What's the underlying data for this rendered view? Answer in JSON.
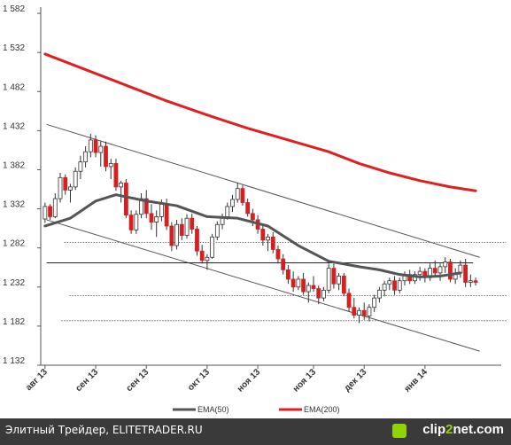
{
  "chart_data": {
    "type": "candlestick",
    "yticks": [
      1132,
      1182,
      1232,
      1282,
      1332,
      1382,
      1432,
      1482,
      1532,
      1582
    ],
    "ylim": [
      1132,
      1590
    ],
    "xticks": [
      {
        "label": "авг 13",
        "i": 0
      },
      {
        "label": "сен 13",
        "i": 10
      },
      {
        "label": "сен 13",
        "i": 20
      },
      {
        "label": "окт 13",
        "i": 32
      },
      {
        "label": "ноя 13",
        "i": 42
      },
      {
        "label": "ноя 13",
        "i": 53
      },
      {
        "label": "дек 13",
        "i": 63
      },
      {
        "label": "янв 14",
        "i": 75
      }
    ],
    "n_candles": 86,
    "candles": [
      [
        1319,
        1340,
        1314,
        1335
      ],
      [
        1335,
        1338,
        1318,
        1322
      ],
      [
        1322,
        1352,
        1320,
        1345
      ],
      [
        1345,
        1378,
        1340,
        1372
      ],
      [
        1372,
        1376,
        1350,
        1356
      ],
      [
        1356,
        1364,
        1340,
        1360
      ],
      [
        1360,
        1385,
        1356,
        1380
      ],
      [
        1380,
        1400,
        1370,
        1392
      ],
      [
        1392,
        1412,
        1385,
        1405
      ],
      [
        1405,
        1428,
        1398,
        1420
      ],
      [
        1420,
        1426,
        1398,
        1404
      ],
      [
        1404,
        1418,
        1386,
        1412
      ],
      [
        1412,
        1418,
        1380,
        1386
      ],
      [
        1386,
        1396,
        1370,
        1390
      ],
      [
        1390,
        1396,
        1355,
        1360
      ],
      [
        1360,
        1368,
        1340,
        1365
      ],
      [
        1365,
        1370,
        1320,
        1324
      ],
      [
        1324,
        1330,
        1300,
        1305
      ],
      [
        1305,
        1330,
        1300,
        1325
      ],
      [
        1325,
        1352,
        1320,
        1345
      ],
      [
        1345,
        1356,
        1320,
        1326
      ],
      [
        1326,
        1338,
        1305,
        1315
      ],
      [
        1315,
        1330,
        1296,
        1322
      ],
      [
        1322,
        1344,
        1316,
        1338
      ],
      [
        1338,
        1345,
        1305,
        1310
      ],
      [
        1310,
        1315,
        1278,
        1285
      ],
      [
        1285,
        1318,
        1280,
        1312
      ],
      [
        1312,
        1320,
        1292,
        1298
      ],
      [
        1298,
        1325,
        1294,
        1320
      ],
      [
        1320,
        1326,
        1300,
        1306
      ],
      [
        1306,
        1310,
        1272,
        1278
      ],
      [
        1278,
        1286,
        1262,
        1266
      ],
      [
        1266,
        1274,
        1254,
        1270
      ],
      [
        1270,
        1300,
        1268,
        1296
      ],
      [
        1296,
        1316,
        1292,
        1312
      ],
      [
        1312,
        1326,
        1306,
        1322
      ],
      [
        1322,
        1340,
        1318,
        1335
      ],
      [
        1335,
        1350,
        1328,
        1344
      ],
      [
        1344,
        1365,
        1340,
        1358
      ],
      [
        1358,
        1362,
        1336,
        1340
      ],
      [
        1340,
        1345,
        1322,
        1326
      ],
      [
        1326,
        1332,
        1310,
        1318
      ],
      [
        1318,
        1324,
        1300,
        1306
      ],
      [
        1306,
        1310,
        1285,
        1292
      ],
      [
        1292,
        1300,
        1278,
        1296
      ],
      [
        1296,
        1302,
        1275,
        1280
      ],
      [
        1280,
        1285,
        1262,
        1268
      ],
      [
        1268,
        1274,
        1248,
        1254
      ],
      [
        1254,
        1260,
        1236,
        1242
      ],
      [
        1242,
        1252,
        1226,
        1232
      ],
      [
        1232,
        1246,
        1228,
        1242
      ],
      [
        1242,
        1250,
        1222,
        1226
      ],
      [
        1226,
        1238,
        1212,
        1234
      ],
      [
        1234,
        1246,
        1226,
        1230
      ],
      [
        1230,
        1234,
        1210,
        1218
      ],
      [
        1218,
        1232,
        1214,
        1228
      ],
      [
        1228,
        1262,
        1224,
        1256
      ],
      [
        1256,
        1262,
        1230,
        1236
      ],
      [
        1236,
        1250,
        1228,
        1246
      ],
      [
        1246,
        1250,
        1220,
        1224
      ],
      [
        1224,
        1230,
        1200,
        1206
      ],
      [
        1206,
        1218,
        1192,
        1196
      ],
      [
        1196,
        1206,
        1186,
        1202
      ],
      [
        1202,
        1212,
        1190,
        1195
      ],
      [
        1195,
        1210,
        1188,
        1206
      ],
      [
        1206,
        1222,
        1200,
        1218
      ],
      [
        1218,
        1232,
        1212,
        1228
      ],
      [
        1228,
        1240,
        1220,
        1236
      ],
      [
        1236,
        1244,
        1228,
        1240
      ],
      [
        1240,
        1246,
        1222,
        1228
      ],
      [
        1228,
        1244,
        1224,
        1240
      ],
      [
        1240,
        1252,
        1234,
        1248
      ],
      [
        1248,
        1254,
        1236,
        1240
      ],
      [
        1240,
        1252,
        1236,
        1248
      ],
      [
        1248,
        1258,
        1240,
        1252
      ],
      [
        1252,
        1256,
        1238,
        1244
      ],
      [
        1244,
        1262,
        1240,
        1256
      ],
      [
        1256,
        1266,
        1246,
        1250
      ],
      [
        1250,
        1262,
        1240,
        1258
      ],
      [
        1258,
        1270,
        1250,
        1264
      ],
      [
        1264,
        1268,
        1238,
        1242
      ],
      [
        1242,
        1256,
        1236,
        1250
      ],
      [
        1250,
        1266,
        1244,
        1260
      ],
      [
        1260,
        1268,
        1232,
        1238
      ],
      [
        1238,
        1248,
        1232,
        1240
      ],
      [
        1240,
        1244,
        1234,
        1238
      ]
    ],
    "series": [
      {
        "name": "EMA(50)",
        "color": "#555555",
        "values": [
          [
            0,
            1310
          ],
          [
            5,
            1320
          ],
          [
            10,
            1342
          ],
          [
            14,
            1350
          ],
          [
            20,
            1342
          ],
          [
            26,
            1336
          ],
          [
            32,
            1322
          ],
          [
            38,
            1320
          ],
          [
            44,
            1310
          ],
          [
            50,
            1285
          ],
          [
            56,
            1265
          ],
          [
            62,
            1258
          ],
          [
            66,
            1254
          ],
          [
            70,
            1248
          ],
          [
            74,
            1245
          ],
          [
            78,
            1246
          ],
          [
            82,
            1250
          ]
        ]
      },
      {
        "name": "EMA(200)",
        "color": "#e02020",
        "values": [
          [
            0,
            1530
          ],
          [
            8,
            1510
          ],
          [
            16,
            1490
          ],
          [
            24,
            1470
          ],
          [
            32,
            1452
          ],
          [
            40,
            1435
          ],
          [
            48,
            1420
          ],
          [
            56,
            1405
          ],
          [
            62,
            1390
          ],
          [
            68,
            1378
          ],
          [
            74,
            1368
          ],
          [
            80,
            1360
          ],
          [
            85,
            1355
          ]
        ]
      }
    ],
    "trendlines": [
      {
        "style": "solid",
        "color": "#555555",
        "points": [
          [
            0.3,
            1440
          ],
          [
            85.8,
            1270
          ]
        ]
      },
      {
        "style": "solid",
        "color": "#555555",
        "points": [
          [
            0.3,
            1318
          ],
          [
            85.8,
            1150
          ]
        ]
      },
      {
        "style": "solid",
        "color": "#222222",
        "points": [
          [
            0.3,
            1263
          ],
          [
            84.5,
            1263
          ]
        ]
      },
      {
        "style": "dotted",
        "color": "#777777",
        "points": [
          [
            3.8,
            1289
          ],
          [
            91,
            1289
          ]
        ]
      },
      {
        "style": "dotted",
        "color": "#777777",
        "points": [
          [
            4.8,
            1221
          ],
          [
            91.3,
            1221
          ]
        ]
      },
      {
        "style": "dotted",
        "color": "#777777",
        "points": [
          [
            3.2,
            1189
          ],
          [
            91.3,
            1189
          ]
        ]
      }
    ],
    "legend": {
      "position": "bottom-right"
    },
    "grid": false
  },
  "footer": {
    "left_text": "Элитный Трейдер, ELITETRADER.RU",
    "logo_text_a": "clip",
    "logo_text_b": "2",
    "logo_text_c": "net.com"
  }
}
